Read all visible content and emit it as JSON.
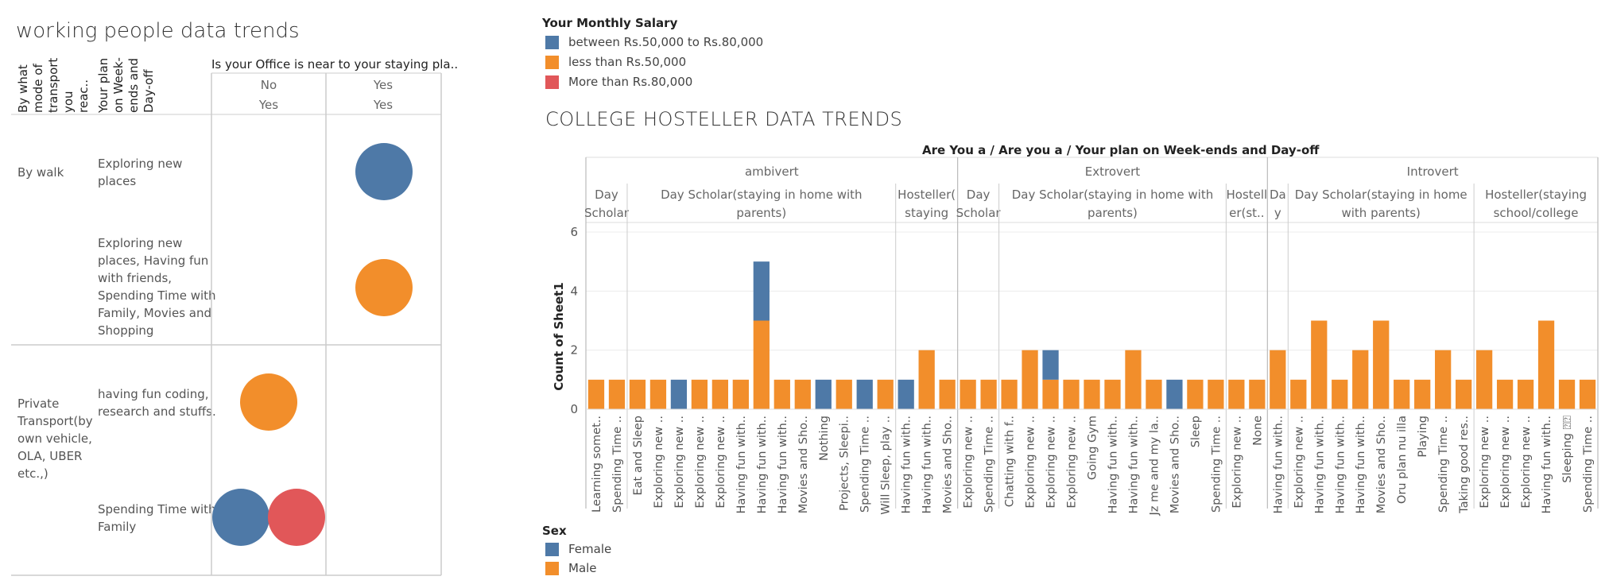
{
  "left": {
    "title": "working people data trends",
    "col_headers": [
      "By what mode of transport you reac..",
      "Your plan on Week-ends and Day-off"
    ],
    "office_title": "Is your Office is near to your staying pla..",
    "columns": [
      {
        "top": "No",
        "bottom": "Yes"
      },
      {
        "top": "Yes",
        "bottom": "Yes"
      }
    ],
    "groups": [
      {
        "mode": "By walk",
        "rows": [
          {
            "plan": "Exploring new places",
            "marks": [
              {
                "col": 1,
                "color": "#4e79a7"
              }
            ]
          },
          {
            "plan": "Exploring new places, Having fun with friends, Spending Time with Family, Movies and Shopping",
            "marks": [
              {
                "col": 1,
                "color": "#f28e2b"
              }
            ]
          }
        ]
      },
      {
        "mode": "Private Transport(by own vehicle, OLA, UBER etc.,)",
        "rows": [
          {
            "plan": "having fun coding, research and stuffs.",
            "marks": [
              {
                "col": 0,
                "color": "#f28e2b"
              }
            ]
          },
          {
            "plan": "Spending Time with Family",
            "marks": [
              {
                "col": 0,
                "color": "#4e79a7"
              },
              {
                "col": 0,
                "color": "#e15759"
              }
            ]
          }
        ]
      }
    ]
  },
  "salary_legend": {
    "title": "Your Monthly Salary",
    "items": [
      {
        "label": "between Rs.50,000 to Rs.80,000",
        "color": "#4e79a7"
      },
      {
        "label": "less than Rs.50,000",
        "color": "#f28e2b"
      },
      {
        "label": "More than Rs.80,000",
        "color": "#e15759"
      }
    ]
  },
  "sex_legend": {
    "title": "Sex",
    "items": [
      {
        "label": "Female",
        "color": "#4e79a7"
      },
      {
        "label": "Male",
        "color": "#f28e2b"
      }
    ]
  },
  "right": {
    "title": "COLLEGE HOSTELLER DATA TRENDS",
    "header_title": "Are You a  /  Are you a  /  Your plan on Week-ends and Day-off"
  },
  "chart_data": {
    "type": "bar",
    "ylabel": "Count of Sheet1",
    "ylim": [
      0,
      6
    ],
    "yticks": [
      0,
      2,
      4,
      6
    ],
    "stacked": true,
    "groups": [
      {
        "name": "ambivert",
        "subgroups": [
          {
            "name": "Day Scholar ..",
            "bars": [
              {
                "label": "Learning somet..",
                "female": 0,
                "male": 1
              },
              {
                "label": "Spending Time ..",
                "female": 0,
                "male": 1
              }
            ]
          },
          {
            "name": "Day Scholar(staying in home with parents)",
            "bars": [
              {
                "label": "Eat and Sleep",
                "female": 0,
                "male": 1
              },
              {
                "label": "Exploring new ..",
                "female": 0,
                "male": 1
              },
              {
                "label": "Exploring new ..",
                "female": 1,
                "male": 0
              },
              {
                "label": "Exploring new ..",
                "female": 0,
                "male": 1
              },
              {
                "label": "Exploring new ..",
                "female": 0,
                "male": 1
              },
              {
                "label": "Having fun with..",
                "female": 0,
                "male": 1
              },
              {
                "label": "Having fun with..",
                "female": 2,
                "male": 3
              },
              {
                "label": "Having fun with..",
                "female": 0,
                "male": 1
              },
              {
                "label": "Movies and Sho..",
                "female": 0,
                "male": 1
              },
              {
                "label": "Nothing",
                "female": 1,
                "male": 0
              },
              {
                "label": "Projects, Sleepi..",
                "female": 0,
                "male": 1
              },
              {
                "label": "Spending Time ..",
                "female": 1,
                "male": 0
              },
              {
                "label": "Will Sleep, play ..",
                "female": 0,
                "male": 1
              }
            ]
          },
          {
            "name": "Hosteller( staying s..",
            "bars": [
              {
                "label": "Having fun with..",
                "female": 1,
                "male": 0
              },
              {
                "label": "Having fun with..",
                "female": 0,
                "male": 2
              },
              {
                "label": "Movies and Sho..",
                "female": 0,
                "male": 1
              }
            ]
          }
        ]
      },
      {
        "name": "Extrovert",
        "subgroups": [
          {
            "name": "Day Scholar ..",
            "bars": [
              {
                "label": "Exploring new ..",
                "female": 0,
                "male": 1
              },
              {
                "label": "Spending Time ..",
                "female": 0,
                "male": 1
              }
            ]
          },
          {
            "name": "Day Scholar(staying in home with parents)",
            "bars": [
              {
                "label": "Chatting with f..",
                "female": 0,
                "male": 1
              },
              {
                "label": "Exploring new ..",
                "female": 0,
                "male": 2
              },
              {
                "label": "Exploring new ..",
                "female": 1,
                "male": 1
              },
              {
                "label": "Exploring new ..",
                "female": 0,
                "male": 1
              },
              {
                "label": "Going Gym",
                "female": 0,
                "male": 1
              },
              {
                "label": "Having fun with..",
                "female": 0,
                "male": 1
              },
              {
                "label": "Having fun with..",
                "female": 0,
                "male": 2
              },
              {
                "label": "Jz me and my la..",
                "female": 0,
                "male": 1
              },
              {
                "label": "Movies and Sho..",
                "female": 1,
                "male": 0
              },
              {
                "label": "Sleep",
                "female": 0,
                "male": 1
              },
              {
                "label": "Spending Time ..",
                "female": 0,
                "male": 1
              }
            ]
          },
          {
            "name": "Hostell er(st..",
            "bars": [
              {
                "label": "Exploring new ..",
                "female": 0,
                "male": 1
              },
              {
                "label": "None",
                "female": 0,
                "male": 1
              }
            ]
          }
        ]
      },
      {
        "name": "Introvert",
        "subgroups": [
          {
            "name": "Da y ..",
            "bars": [
              {
                "label": "Having fun with..",
                "female": 0,
                "male": 2
              }
            ]
          },
          {
            "name": "Day Scholar(staying in home with parents)",
            "bars": [
              {
                "label": "Exploring new ..",
                "female": 0,
                "male": 1
              },
              {
                "label": "Having fun with..",
                "female": 0,
                "male": 3
              },
              {
                "label": "Having fun with..",
                "female": 0,
                "male": 1
              },
              {
                "label": "Having fun with..",
                "female": 0,
                "male": 2
              },
              {
                "label": "Movies and Sho..",
                "female": 0,
                "male": 3
              },
              {
                "label": "Oru plan nu illa",
                "female": 0,
                "male": 1
              },
              {
                "label": "Playing",
                "female": 0,
                "male": 1
              },
              {
                "label": "Spending Time ..",
                "female": 0,
                "male": 2
              },
              {
                "label": "Taking good res..",
                "female": 0,
                "male": 1
              }
            ]
          },
          {
            "name": "Hosteller(staying school/college camp..",
            "bars": [
              {
                "label": "Exploring new ..",
                "female": 0,
                "male": 2
              },
              {
                "label": "Exploring new ..",
                "female": 0,
                "male": 1
              },
              {
                "label": "Exploring new ..",
                "female": 0,
                "male": 1
              },
              {
                "label": "Having fun with..",
                "female": 0,
                "male": 3
              },
              {
                "label": "Sleeping ⍰⍰",
                "female": 0,
                "male": 1
              },
              {
                "label": "Spending Time ..",
                "female": 0,
                "male": 1
              }
            ]
          }
        ]
      }
    ]
  }
}
